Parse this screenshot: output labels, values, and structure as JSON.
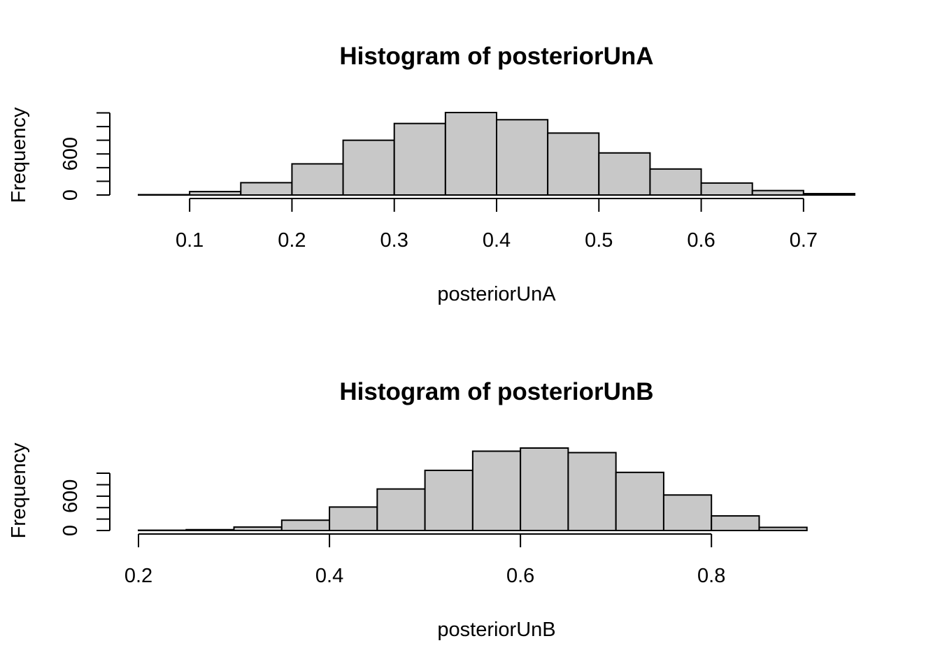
{
  "chart_data": [
    {
      "type": "bar",
      "title": "Histogram of posteriorUnA",
      "xlabel": "posteriorUnA",
      "ylabel": "Frequency",
      "bin_edges": [
        0.05,
        0.1,
        0.15,
        0.2,
        0.25,
        0.3,
        0.35,
        0.4,
        0.45,
        0.5,
        0.55,
        0.6,
        0.65,
        0.7,
        0.75
      ],
      "values": [
        5,
        50,
        180,
        455,
        800,
        1045,
        1205,
        1100,
        905,
        615,
        380,
        175,
        65,
        20
      ],
      "xlim": [
        0.05,
        0.75
      ],
      "ylim": [
        0,
        1205
      ],
      "x_ticks": [
        "0.1",
        "0.2",
        "0.3",
        "0.4",
        "0.5",
        "0.6",
        "0.7"
      ],
      "x_tick_values": [
        0.1,
        0.2,
        0.3,
        0.4,
        0.5,
        0.6,
        0.7
      ],
      "y_ticks": [
        0,
        200,
        400,
        600,
        800,
        1000,
        1200
      ],
      "y_tick_labels": [
        "0",
        "",
        "",
        "600",
        "",
        "",
        ""
      ],
      "grid": false,
      "bar_color": "#c8c8c8"
    },
    {
      "type": "bar",
      "title": "Histogram of posteriorUnB",
      "xlabel": "posteriorUnB",
      "ylabel": "Frequency",
      "bin_edges": [
        0.2,
        0.25,
        0.3,
        0.35,
        0.4,
        0.45,
        0.5,
        0.55,
        0.6,
        0.65,
        0.7,
        0.75,
        0.8,
        0.85,
        0.9,
        0.95
      ],
      "values": [
        5,
        15,
        60,
        180,
        410,
        725,
        1050,
        1385,
        1440,
        1360,
        1015,
        620,
        255,
        55,
        0
      ],
      "xlim": [
        0.2,
        0.95
      ],
      "ylim": [
        0,
        1440
      ],
      "x_ticks": [
        "0.2",
        "0.4",
        "0.6",
        "0.8"
      ],
      "x_tick_values": [
        0.2,
        0.4,
        0.6,
        0.8
      ],
      "y_ticks": [
        0,
        200,
        400,
        600,
        800,
        1000
      ],
      "y_tick_labels": [
        "0",
        "",
        "",
        "600",
        "",
        ""
      ],
      "grid": false,
      "bar_color": "#c8c8c8"
    }
  ]
}
